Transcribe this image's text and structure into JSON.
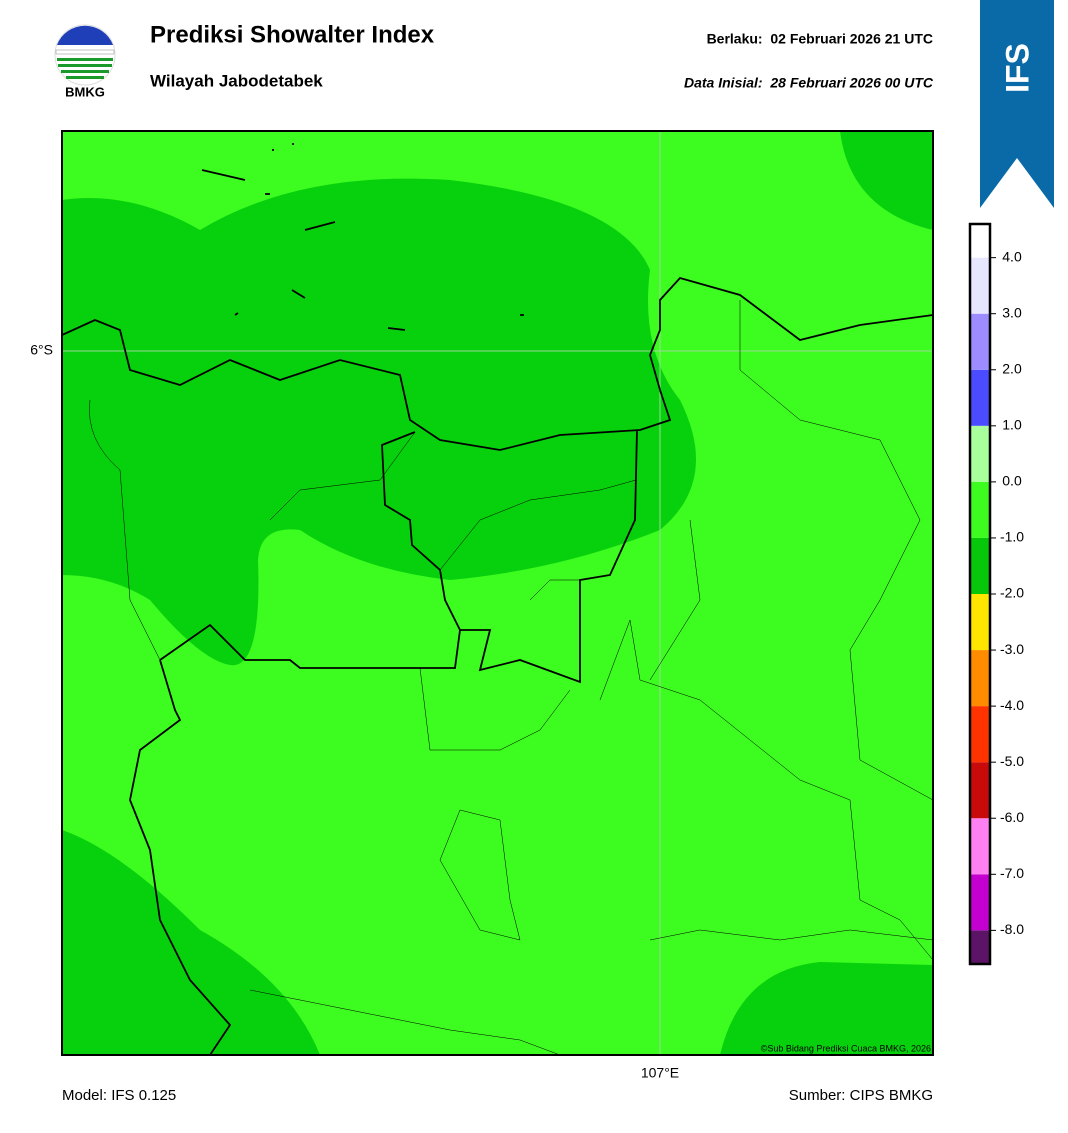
{
  "header": {
    "title": "Prediksi Showalter Index",
    "subtitle": "Wilayah Jabodetabek",
    "valid": "Berlaku:  02 Februari 2026 21 UTC",
    "init": "Data Inisial:  28 Februari 2026 00 UTC"
  },
  "logo": {
    "text": "BMKG"
  },
  "badge": {
    "text": "IFS"
  },
  "map": {
    "lat_label": "6°S",
    "lon_label": "107°E",
    "credit": "©Sub Bidang Prediksi Cuaca BMKG, 2026"
  },
  "colorbar": {
    "lim": [
      -8.6,
      4.6
    ],
    "levels": [
      -8.6,
      -8,
      -7,
      -6,
      -5,
      -4,
      -3,
      -2,
      -1,
      0,
      1,
      2,
      3,
      4,
      4.6
    ],
    "colors": [
      "#5c1466",
      "#c400d0",
      "#ff80f0",
      "#c80a0a",
      "#ff3300",
      "#ff8c00",
      "#ffe600",
      "#07c70a",
      "#3dfc1f",
      "#a8ff9c",
      "#4b4bff",
      "#9c8cff",
      "#e6e6ff",
      "#ffffff"
    ],
    "ticks": [
      {
        "value": 4,
        "label": "4.0"
      },
      {
        "value": 3,
        "label": "3.0"
      },
      {
        "value": 2,
        "label": "2.0"
      },
      {
        "value": 1,
        "label": "1.0"
      },
      {
        "value": 0,
        "label": "0.0"
      },
      {
        "value": -1,
        "label": "-1.0"
      },
      {
        "value": -2,
        "label": "-2.0"
      },
      {
        "value": -3,
        "label": "-3.0"
      },
      {
        "value": -4,
        "label": "-4.0"
      },
      {
        "value": -5,
        "label": "-5.0"
      },
      {
        "value": -6,
        "label": "-6.0"
      },
      {
        "value": -7,
        "label": "-7.0"
      },
      {
        "value": -8,
        "label": "-8.0"
      }
    ]
  },
  "footer": {
    "model": "Model: IFS 0.125",
    "source": "Sumber: CIPS BMKG"
  }
}
